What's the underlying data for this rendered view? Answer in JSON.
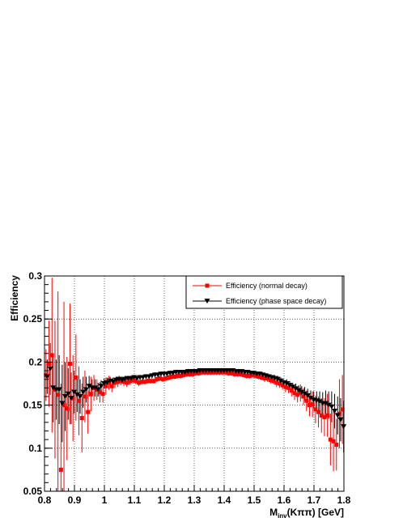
{
  "chart_data": {
    "type": "scatter",
    "title": "",
    "xlabel": "M_inv(Kππ) [GeV]",
    "xlabel_parts": {
      "main": "M",
      "sub": "inv",
      "rest": "(Kππ) [GeV]"
    },
    "ylabel": "Efficiency",
    "xlim": [
      0.8,
      1.8
    ],
    "ylim": [
      0.05,
      0.3
    ],
    "grid": true,
    "legend_position": "top-right",
    "x_tick_labels": [
      "0.8",
      "0.9",
      "1",
      "1.1",
      "1.2",
      "1.3",
      "1.4",
      "1.5",
      "1.6",
      "1.7",
      "1.8"
    ],
    "y_tick_labels": [
      "0.05",
      "0.1",
      "0.15",
      "0.2",
      "0.25",
      "0.3"
    ],
    "x_tick_values": [
      0.8,
      0.9,
      1.0,
      1.1,
      1.2,
      1.3,
      1.4,
      1.5,
      1.6,
      1.7,
      1.8
    ],
    "y_tick_values": [
      0.05,
      0.1,
      0.15,
      0.2,
      0.25,
      0.3
    ],
    "series": [
      {
        "name": "Efficiency (normal decay)",
        "color": "#ff0000",
        "marker": "square",
        "x": [
          0.805,
          0.815,
          0.825,
          0.835,
          0.845,
          0.855,
          0.865,
          0.875,
          0.885,
          0.895,
          0.905,
          0.915,
          0.925,
          0.935,
          0.945,
          0.955,
          0.965,
          0.975,
          0.985,
          0.995,
          1.005,
          1.015,
          1.025,
          1.035,
          1.045,
          1.055,
          1.065,
          1.075,
          1.085,
          1.095,
          1.105,
          1.115,
          1.125,
          1.135,
          1.145,
          1.155,
          1.165,
          1.175,
          1.185,
          1.195,
          1.205,
          1.215,
          1.225,
          1.235,
          1.245,
          1.255,
          1.265,
          1.275,
          1.285,
          1.295,
          1.305,
          1.315,
          1.325,
          1.335,
          1.345,
          1.355,
          1.365,
          1.375,
          1.385,
          1.395,
          1.405,
          1.415,
          1.425,
          1.435,
          1.445,
          1.455,
          1.465,
          1.475,
          1.485,
          1.495,
          1.505,
          1.515,
          1.525,
          1.535,
          1.545,
          1.555,
          1.565,
          1.575,
          1.585,
          1.595,
          1.605,
          1.615,
          1.625,
          1.635,
          1.645,
          1.655,
          1.665,
          1.675,
          1.685,
          1.695,
          1.705,
          1.715,
          1.725,
          1.735,
          1.745,
          1.755,
          1.765,
          1.775,
          1.785,
          1.795
        ],
        "y": [
          0.185,
          0.198,
          0.208,
          0.168,
          0.162,
          0.075,
          0.15,
          0.146,
          0.198,
          0.158,
          0.182,
          0.155,
          0.135,
          0.16,
          0.142,
          0.163,
          0.17,
          0.168,
          0.165,
          0.163,
          0.172,
          0.176,
          0.172,
          0.176,
          0.177,
          0.178,
          0.177,
          0.176,
          0.178,
          0.179,
          0.178,
          0.176,
          0.177,
          0.177,
          0.178,
          0.178,
          0.178,
          0.18,
          0.181,
          0.18,
          0.181,
          0.182,
          0.183,
          0.183,
          0.184,
          0.184,
          0.185,
          0.186,
          0.186,
          0.186,
          0.187,
          0.187,
          0.188,
          0.188,
          0.188,
          0.188,
          0.188,
          0.188,
          0.188,
          0.188,
          0.188,
          0.187,
          0.187,
          0.186,
          0.186,
          0.186,
          0.185,
          0.184,
          0.184,
          0.185,
          0.184,
          0.183,
          0.182,
          0.181,
          0.181,
          0.179,
          0.178,
          0.176,
          0.175,
          0.173,
          0.171,
          0.17,
          0.167,
          0.164,
          0.162,
          0.164,
          0.16,
          0.155,
          0.15,
          0.151,
          0.145,
          0.142,
          0.138,
          0.136,
          0.138,
          0.11,
          0.108,
          0.104,
          0.14,
          0.145
        ],
        "err": [
          0.03,
          0.05,
          0.09,
          0.08,
          0.12,
          0.1,
          0.12,
          0.06,
          0.07,
          0.05,
          0.05,
          0.04,
          0.04,
          0.03,
          0.025,
          0.02,
          0.015,
          0.012,
          0.012,
          0.01,
          0.01,
          0.008,
          0.007,
          0.006,
          0.006,
          0.005,
          0.005,
          0.005,
          0.004,
          0.004,
          0.004,
          0.004,
          0.003,
          0.003,
          0.003,
          0.003,
          0.003,
          0.003,
          0.003,
          0.003,
          0.003,
          0.003,
          0.003,
          0.003,
          0.003,
          0.003,
          0.003,
          0.003,
          0.003,
          0.003,
          0.003,
          0.003,
          0.003,
          0.003,
          0.003,
          0.003,
          0.003,
          0.003,
          0.003,
          0.003,
          0.003,
          0.003,
          0.003,
          0.003,
          0.003,
          0.003,
          0.003,
          0.003,
          0.003,
          0.003,
          0.003,
          0.003,
          0.003,
          0.004,
          0.004,
          0.004,
          0.004,
          0.005,
          0.005,
          0.005,
          0.006,
          0.006,
          0.007,
          0.008,
          0.009,
          0.01,
          0.01,
          0.012,
          0.013,
          0.015,
          0.016,
          0.018,
          0.02,
          0.022,
          0.025,
          0.03,
          0.035,
          0.03,
          0.04,
          0.04
        ]
      },
      {
        "name": "Efficiency (phase space decay)",
        "color": "#000000",
        "marker": "triangle-down",
        "x": [
          0.805,
          0.815,
          0.825,
          0.835,
          0.845,
          0.855,
          0.865,
          0.875,
          0.885,
          0.895,
          0.905,
          0.915,
          0.925,
          0.935,
          0.945,
          0.955,
          0.965,
          0.975,
          0.985,
          0.995,
          1.005,
          1.015,
          1.025,
          1.035,
          1.045,
          1.055,
          1.065,
          1.075,
          1.085,
          1.095,
          1.105,
          1.115,
          1.125,
          1.135,
          1.145,
          1.155,
          1.165,
          1.175,
          1.185,
          1.195,
          1.205,
          1.215,
          1.225,
          1.235,
          1.245,
          1.255,
          1.265,
          1.275,
          1.285,
          1.295,
          1.305,
          1.315,
          1.325,
          1.335,
          1.345,
          1.355,
          1.365,
          1.375,
          1.385,
          1.395,
          1.405,
          1.415,
          1.425,
          1.435,
          1.445,
          1.455,
          1.465,
          1.475,
          1.485,
          1.495,
          1.505,
          1.515,
          1.525,
          1.535,
          1.545,
          1.555,
          1.565,
          1.575,
          1.585,
          1.595,
          1.605,
          1.615,
          1.625,
          1.635,
          1.645,
          1.655,
          1.665,
          1.675,
          1.685,
          1.695,
          1.705,
          1.715,
          1.725,
          1.735,
          1.745,
          1.755,
          1.765,
          1.775,
          1.785,
          1.795
        ],
        "y": [
          0.183,
          0.192,
          0.17,
          0.168,
          0.168,
          0.152,
          0.16,
          0.163,
          0.158,
          0.165,
          0.162,
          0.16,
          0.165,
          0.168,
          0.172,
          0.17,
          0.17,
          0.168,
          0.172,
          0.175,
          0.176,
          0.178,
          0.177,
          0.179,
          0.18,
          0.179,
          0.18,
          0.181,
          0.181,
          0.182,
          0.181,
          0.182,
          0.182,
          0.183,
          0.183,
          0.184,
          0.185,
          0.185,
          0.186,
          0.186,
          0.186,
          0.187,
          0.187,
          0.188,
          0.188,
          0.188,
          0.188,
          0.189,
          0.189,
          0.189,
          0.189,
          0.19,
          0.19,
          0.19,
          0.19,
          0.19,
          0.19,
          0.19,
          0.19,
          0.19,
          0.19,
          0.19,
          0.19,
          0.189,
          0.189,
          0.189,
          0.188,
          0.188,
          0.187,
          0.187,
          0.186,
          0.186,
          0.185,
          0.184,
          0.183,
          0.182,
          0.181,
          0.18,
          0.178,
          0.176,
          0.175,
          0.173,
          0.171,
          0.169,
          0.167,
          0.165,
          0.163,
          0.161,
          0.158,
          0.156,
          0.155,
          0.154,
          0.152,
          0.152,
          0.15,
          0.148,
          0.143,
          0.138,
          0.133,
          0.125
        ],
        "err": [
          0.02,
          0.03,
          0.04,
          0.035,
          0.04,
          0.045,
          0.04,
          0.03,
          0.03,
          0.025,
          0.02,
          0.02,
          0.018,
          0.015,
          0.012,
          0.01,
          0.01,
          0.008,
          0.007,
          0.006,
          0.006,
          0.005,
          0.005,
          0.004,
          0.004,
          0.004,
          0.004,
          0.003,
          0.003,
          0.003,
          0.003,
          0.003,
          0.003,
          0.003,
          0.003,
          0.003,
          0.003,
          0.003,
          0.003,
          0.003,
          0.003,
          0.003,
          0.003,
          0.003,
          0.003,
          0.003,
          0.003,
          0.003,
          0.003,
          0.003,
          0.003,
          0.003,
          0.003,
          0.003,
          0.003,
          0.003,
          0.003,
          0.003,
          0.003,
          0.003,
          0.003,
          0.003,
          0.003,
          0.003,
          0.003,
          0.003,
          0.003,
          0.003,
          0.003,
          0.003,
          0.003,
          0.003,
          0.003,
          0.003,
          0.003,
          0.003,
          0.004,
          0.004,
          0.004,
          0.004,
          0.005,
          0.005,
          0.005,
          0.006,
          0.006,
          0.007,
          0.008,
          0.008,
          0.009,
          0.01,
          0.011,
          0.012,
          0.013,
          0.015,
          0.016,
          0.018,
          0.02,
          0.022,
          0.025,
          0.03
        ]
      }
    ]
  }
}
